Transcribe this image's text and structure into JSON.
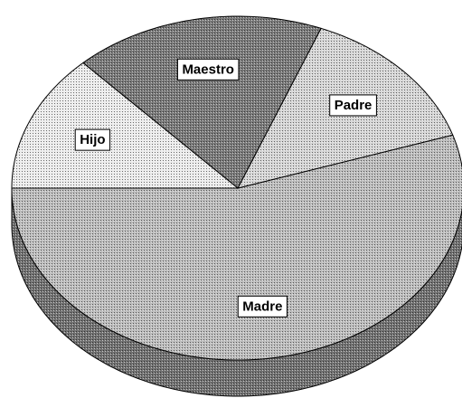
{
  "chart_data": {
    "type": "pie",
    "three_d": true,
    "categories": [
      "Madre",
      "Padre",
      "Maestro",
      "Hijo"
    ],
    "values": [
      55,
      14,
      18,
      13
    ],
    "colors": [
      "#bdbdbd",
      "#d6d6d6",
      "#7a7a7a",
      "#ececec"
    ]
  }
}
